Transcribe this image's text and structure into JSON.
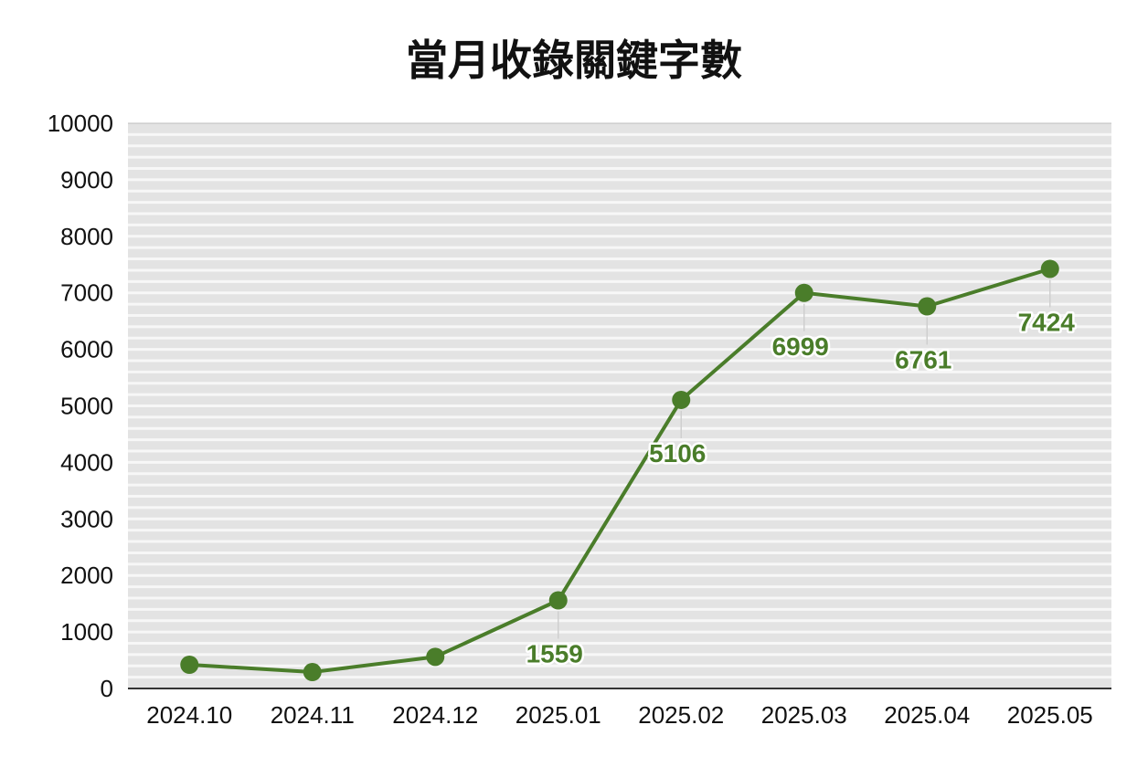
{
  "chart_data": {
    "type": "line",
    "title": "當月收錄關鍵字數",
    "xlabel": "",
    "ylabel": "",
    "categories": [
      "2024.10",
      "2024.11",
      "2024.12",
      "2025.01",
      "2025.02",
      "2025.03",
      "2025.04",
      "2025.05"
    ],
    "series": [
      {
        "values": [
          420,
          290,
          560,
          1559,
          5106,
          6999,
          6761,
          7424
        ],
        "data_labels": [
          "",
          "",
          "",
          "1559",
          "5106",
          "6999",
          "6761",
          "7424"
        ]
      }
    ],
    "ylim": [
      0,
      10000
    ],
    "yticks": [
      "0",
      "1000",
      "2000",
      "3000",
      "4000",
      "5000",
      "6000",
      "7000",
      "8000",
      "9000",
      "10000"
    ],
    "grid": true,
    "legend": "none",
    "colors": {
      "line": "#4a7d2a",
      "plot_background": "#e3e3e3",
      "gridline": "#f7f7f7",
      "axis": "#333333"
    }
  }
}
